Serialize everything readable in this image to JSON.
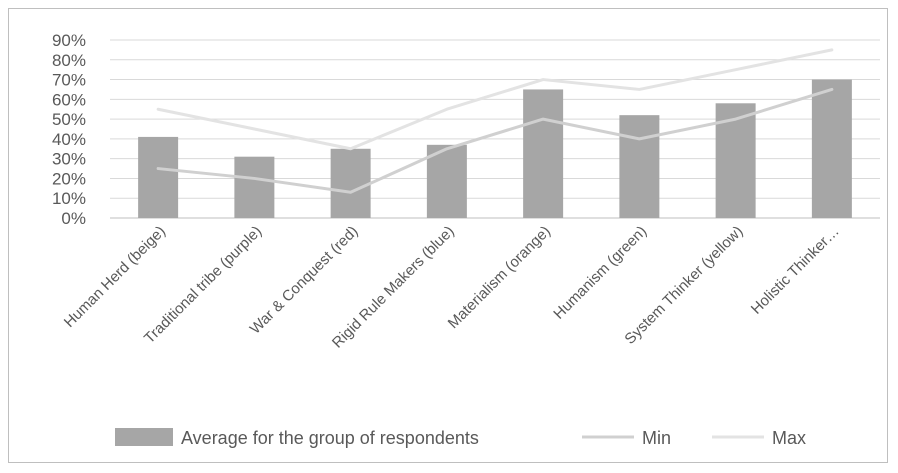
{
  "chart_data": {
    "type": "bar",
    "title": "",
    "xlabel": "",
    "ylabel": "",
    "categories": [
      "Human Herd (beige)",
      "Traditional tribe (purple)",
      "War & Conquest (red)",
      "Rigid Rule Makers (blue)",
      "Materialism (orange)",
      "Humanism (green)",
      "System Thinker (yellow)",
      "Holistic Thinker…"
    ],
    "series": [
      {
        "name": "Average for the group of respondents",
        "kind": "bar",
        "color": "#a6a6a6",
        "values": [
          41,
          31,
          35,
          37,
          65,
          52,
          58,
          70
        ]
      },
      {
        "name": "Min",
        "kind": "line",
        "color": "#d0d0d0",
        "values": [
          25,
          20,
          13,
          35,
          50,
          40,
          50,
          65
        ]
      },
      {
        "name": "Max",
        "kind": "line",
        "color": "#e3e3e3",
        "values": [
          55,
          45,
          35,
          55,
          70,
          65,
          75,
          85
        ]
      }
    ],
    "ylim": [
      0,
      90
    ],
    "yticks": [
      "0%",
      "10%",
      "20%",
      "30%",
      "40%",
      "50%",
      "60%",
      "70%",
      "80%",
      "90%"
    ],
    "grid": true,
    "legend": "bottom"
  }
}
